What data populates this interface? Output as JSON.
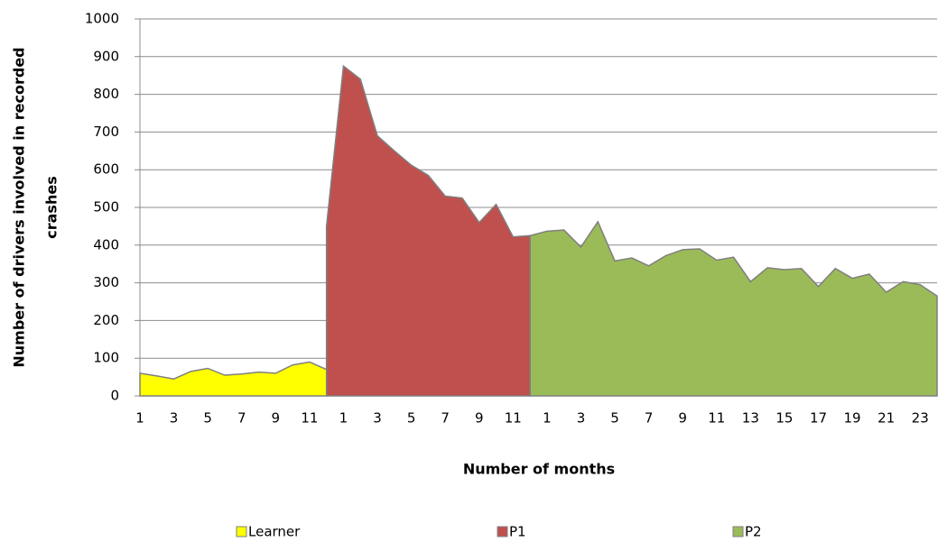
{
  "chart_data": {
    "type": "area",
    "xlabel": "Number of months",
    "ylabel": [
      "Number of drivers involved in recorded",
      "crashes"
    ],
    "categories": [
      "1",
      null,
      "3",
      null,
      "5",
      null,
      "7",
      null,
      "9",
      null,
      "11",
      null,
      "1",
      null,
      "3",
      null,
      "5",
      null,
      "7",
      null,
      "9",
      null,
      "11",
      null,
      "1",
      null,
      "3",
      null,
      "5",
      null,
      "7",
      null,
      "9",
      null,
      "11",
      null,
      "13",
      null,
      "15",
      null,
      "17",
      null,
      "19",
      null,
      "21",
      null,
      "23",
      null
    ],
    "series": [
      {
        "name": "Learner",
        "color": "#ffff00",
        "values": [
          60,
          53,
          45,
          65,
          73,
          55,
          58,
          63,
          60,
          82,
          90,
          70,
          null,
          null,
          null,
          null,
          null,
          null,
          null,
          null,
          null,
          null,
          null,
          null,
          null,
          null,
          null,
          null,
          null,
          null,
          null,
          null,
          null,
          null,
          null,
          null,
          null,
          null,
          null,
          null,
          null,
          null,
          null,
          null,
          null,
          null,
          null,
          null
        ]
      },
      {
        "name": "P1",
        "color": "#c0504d",
        "values": [
          null,
          null,
          null,
          null,
          null,
          null,
          null,
          null,
          null,
          null,
          null,
          450,
          875,
          840,
          690,
          650,
          612,
          585,
          530,
          525,
          460,
          508,
          422,
          425,
          null,
          null,
          null,
          null,
          null,
          null,
          null,
          null,
          null,
          null,
          null,
          null,
          null,
          null,
          null,
          null,
          null,
          null,
          null,
          null,
          null,
          null,
          null,
          null
        ]
      },
      {
        "name": "P2",
        "color": "#9bbb59",
        "values": [
          null,
          null,
          null,
          null,
          null,
          null,
          null,
          null,
          null,
          null,
          null,
          null,
          null,
          null,
          null,
          null,
          null,
          null,
          null,
          null,
          null,
          null,
          null,
          425,
          437,
          440,
          395,
          462,
          358,
          366,
          345,
          372,
          388,
          390,
          360,
          368,
          303,
          340,
          335,
          338,
          290,
          338,
          312,
          323,
          275,
          303,
          295,
          265
        ]
      }
    ],
    "ylim": [
      0,
      1000
    ],
    "yticks": [
      0,
      100,
      200,
      300,
      400,
      500,
      600,
      700,
      800,
      900,
      1000
    ],
    "grid": true,
    "legend": "bottom"
  }
}
